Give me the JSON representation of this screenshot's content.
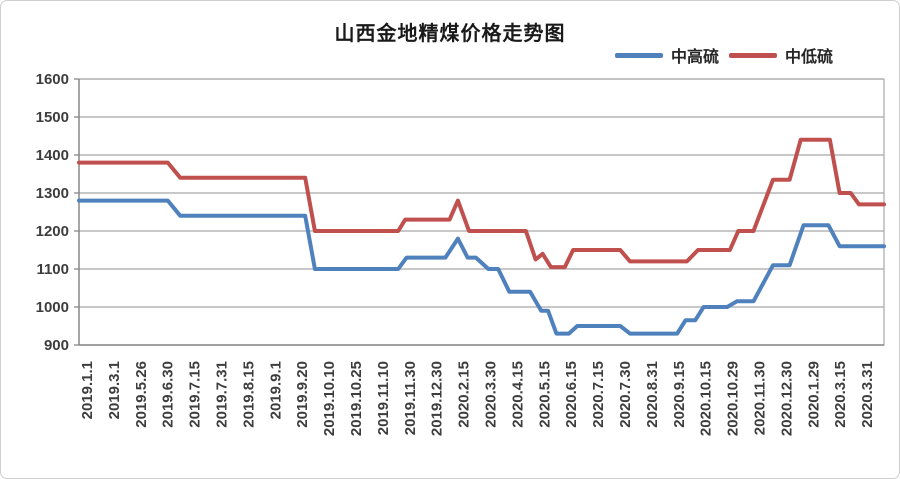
{
  "figure": {
    "title": "山西金地精煤价格走势图"
  },
  "legend": {
    "position": "top-right",
    "items": [
      {
        "label": "中高硫",
        "color": "#4F81BD"
      },
      {
        "label": "中低硫",
        "color": "#C0504D"
      }
    ]
  },
  "colors": {
    "gridline": "#a8a8a8",
    "axis": "#808080",
    "tick_label": "#3d3d3d",
    "title": "#1a1a1a",
    "background": "#ffffff"
  },
  "chart_data": {
    "type": "line",
    "title": "山西金地精煤价格走势图",
    "xlabel": "",
    "ylabel": "",
    "ylim": [
      900,
      1600
    ],
    "ytick_step": 100,
    "yticks": [
      900,
      1000,
      1100,
      1200,
      1300,
      1400,
      1500,
      1600
    ],
    "grid": true,
    "legend_position": "top-right",
    "categories": [
      "2019.1.1",
      "2019.3.1",
      "2019.5.26",
      "2019.6.30",
      "2019.7.15",
      "2019.7.31",
      "2019.8.15",
      "2019.9.1",
      "2019.9.20",
      "2019.10.10",
      "2019.10.25",
      "2019.11.10",
      "2019.11.30",
      "2019.12.30",
      "2020.2.15",
      "2020.3.30",
      "2020.4.15",
      "2020.5.15",
      "2020.6.15",
      "2020.7.15",
      "2020.7.30",
      "2020.8.31",
      "2020.9.15",
      "2020.10.15",
      "2020.10.29",
      "2020.11.30",
      "2020.12.30",
      "2020.1.29",
      "2020.3.15",
      "2020.3.31"
    ],
    "series": [
      {
        "name": "中高硫",
        "color": "#4F81BD",
        "values_at_categories": [
          1280,
          1280,
          1280,
          1280,
          1240,
          1240,
          1240,
          1240,
          1240,
          1100,
          1100,
          1100,
          1130,
          1130,
          1130,
          1100,
          1040,
          930,
          950,
          950,
          930,
          930,
          965,
          1000,
          1015,
          1110,
          1215,
          1215,
          1160,
          1160
        ],
        "points": [
          [
            0,
            1280
          ],
          [
            3.2,
            1280
          ],
          [
            3.65,
            1240
          ],
          [
            8.15,
            1240
          ],
          [
            8.5,
            1100
          ],
          [
            11.5,
            1100
          ],
          [
            11.8,
            1130
          ],
          [
            13.2,
            1130
          ],
          [
            13.65,
            1180
          ],
          [
            14.0,
            1130
          ],
          [
            14.3,
            1130
          ],
          [
            14.75,
            1100
          ],
          [
            15.1,
            1100
          ],
          [
            15.5,
            1040
          ],
          [
            16.25,
            1040
          ],
          [
            16.65,
            990
          ],
          [
            16.9,
            990
          ],
          [
            17.2,
            930
          ],
          [
            17.65,
            930
          ],
          [
            17.95,
            950
          ],
          [
            19.5,
            950
          ],
          [
            19.85,
            930
          ],
          [
            21.55,
            930
          ],
          [
            21.85,
            965
          ],
          [
            22.2,
            965
          ],
          [
            22.5,
            1000
          ],
          [
            23.35,
            1000
          ],
          [
            23.7,
            1015
          ],
          [
            24.3,
            1015
          ],
          [
            25.0,
            1110
          ],
          [
            25.6,
            1110
          ],
          [
            26.1,
            1215
          ],
          [
            27.0,
            1215
          ],
          [
            27.4,
            1160
          ],
          [
            29,
            1160
          ]
        ]
      },
      {
        "name": "中低硫",
        "color": "#C0504D",
        "values_at_categories": [
          1380,
          1380,
          1380,
          1380,
          1340,
          1340,
          1340,
          1340,
          1340,
          1200,
          1200,
          1200,
          1230,
          1230,
          1200,
          1200,
          1200,
          1105,
          1150,
          1150,
          1120,
          1120,
          1120,
          1150,
          1200,
          1335,
          1440,
          1440,
          1270,
          1270
        ],
        "points": [
          [
            0,
            1380
          ],
          [
            3.2,
            1380
          ],
          [
            3.65,
            1340
          ],
          [
            8.15,
            1340
          ],
          [
            8.5,
            1200
          ],
          [
            11.5,
            1200
          ],
          [
            11.75,
            1230
          ],
          [
            13.35,
            1230
          ],
          [
            13.65,
            1280
          ],
          [
            14.05,
            1200
          ],
          [
            16.1,
            1200
          ],
          [
            16.45,
            1125
          ],
          [
            16.7,
            1140
          ],
          [
            17.0,
            1105
          ],
          [
            17.5,
            1105
          ],
          [
            17.8,
            1150
          ],
          [
            19.5,
            1150
          ],
          [
            19.85,
            1120
          ],
          [
            21.9,
            1120
          ],
          [
            22.3,
            1150
          ],
          [
            23.45,
            1150
          ],
          [
            23.75,
            1200
          ],
          [
            24.3,
            1200
          ],
          [
            25.0,
            1335
          ],
          [
            25.6,
            1335
          ],
          [
            26.0,
            1440
          ],
          [
            27.05,
            1440
          ],
          [
            27.4,
            1300
          ],
          [
            27.8,
            1300
          ],
          [
            28.1,
            1270
          ],
          [
            29,
            1270
          ]
        ]
      }
    ]
  }
}
